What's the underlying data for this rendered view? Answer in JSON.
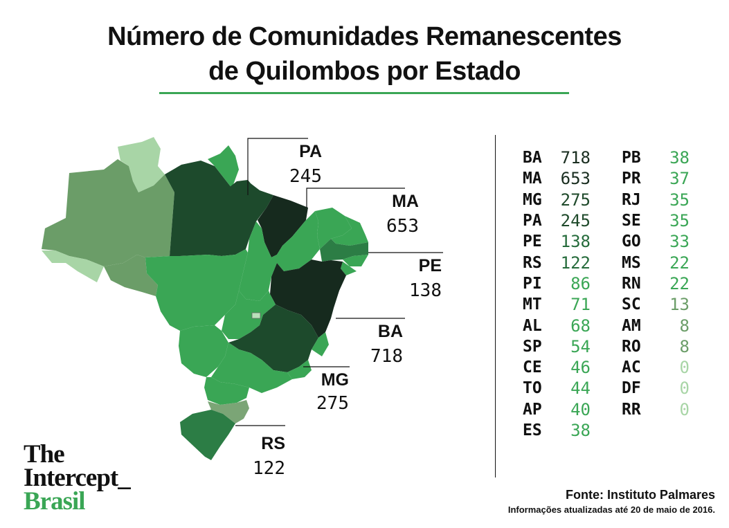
{
  "title": {
    "line1": "Número de Comunidades Remanescentes",
    "line2": "de Quilombos por Estado"
  },
  "colors": {
    "accent": "#3aa655",
    "text": "#111111",
    "scale": [
      "#b9e0ba",
      "#a8d5a6",
      "#7ba576",
      "#6b9d68",
      "#47a95a",
      "#3aa655",
      "#2c7d45",
      "#1d4a2c",
      "#162a1e"
    ]
  },
  "callouts": [
    {
      "abbr": "PA",
      "value": "245"
    },
    {
      "abbr": "MA",
      "value": "653"
    },
    {
      "abbr": "PE",
      "value": "138"
    },
    {
      "abbr": "BA",
      "value": "718"
    },
    {
      "abbr": "MG",
      "value": "275"
    },
    {
      "abbr": "RS",
      "value": "122"
    }
  ],
  "table": {
    "col1": [
      {
        "abbr": "BA",
        "value": "718",
        "color": "#1a2e20"
      },
      {
        "abbr": "MA",
        "value": "653",
        "color": "#1a2e20"
      },
      {
        "abbr": "MG",
        "value": "275",
        "color": "#1f4a2b"
      },
      {
        "abbr": "PA",
        "value": "245",
        "color": "#1f4a2b"
      },
      {
        "abbr": "PE",
        "value": "138",
        "color": "#256b3b"
      },
      {
        "abbr": "RS",
        "value": "122",
        "color": "#256b3b"
      },
      {
        "abbr": "PI",
        "value": "86",
        "color": "#3aa655"
      },
      {
        "abbr": "MT",
        "value": "71",
        "color": "#3aa655"
      },
      {
        "abbr": "AL",
        "value": "68",
        "color": "#3aa655"
      },
      {
        "abbr": "SP",
        "value": "54",
        "color": "#3aa655"
      },
      {
        "abbr": "CE",
        "value": "46",
        "color": "#3aa655"
      },
      {
        "abbr": "TO",
        "value": "44",
        "color": "#3aa655"
      },
      {
        "abbr": "AP",
        "value": "40",
        "color": "#3aa655"
      },
      {
        "abbr": "ES",
        "value": "38",
        "color": "#3aa655"
      }
    ],
    "col2": [
      {
        "abbr": "PB",
        "value": "38",
        "color": "#3aa655"
      },
      {
        "abbr": "PR",
        "value": "37",
        "color": "#3aa655"
      },
      {
        "abbr": "RJ",
        "value": "35",
        "color": "#3aa655"
      },
      {
        "abbr": "SE",
        "value": "35",
        "color": "#3aa655"
      },
      {
        "abbr": "GO",
        "value": "33",
        "color": "#3aa655"
      },
      {
        "abbr": "MS",
        "value": "22",
        "color": "#3aa655"
      },
      {
        "abbr": "RN",
        "value": "22",
        "color": "#3aa655"
      },
      {
        "abbr": "SC",
        "value": "13",
        "color": "#6b9d68"
      },
      {
        "abbr": "AM",
        "value": "8",
        "color": "#6b9d68"
      },
      {
        "abbr": "RO",
        "value": "8",
        "color": "#6b9d68"
      },
      {
        "abbr": "AC",
        "value": "0",
        "color": "#a8d5a6"
      },
      {
        "abbr": "DF",
        "value": "0",
        "color": "#a8d5a6"
      },
      {
        "abbr": "RR",
        "value": "0",
        "color": "#a8d5a6"
      }
    ]
  },
  "logo": {
    "line1": "The",
    "line2": "Intercept_",
    "line3": "Brasil"
  },
  "source": {
    "line1": "Fonte: Instituto Palmares",
    "line2": "Informações atualizadas até 20 de maio de 2016."
  }
}
